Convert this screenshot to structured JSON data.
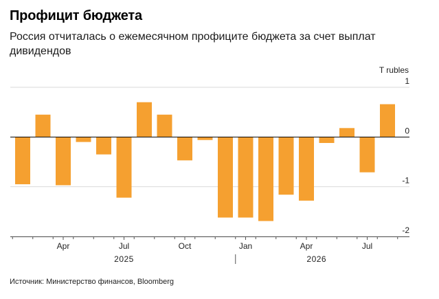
{
  "header": {
    "title": "Профицит бюджета",
    "subtitle": "Россия отчиталась о ежемесячном профиците бюджета за счет выплат дивидендов"
  },
  "footer": {
    "source": "Источник: Министерство финансов, Bloomberg"
  },
  "chart_data": {
    "type": "bar",
    "title": "Профицит бюджета",
    "subtitle": "Россия отчиталась о ежемесячном профиците бюджета за счет выплат дивидендов",
    "unit": "T rubles",
    "categories": [
      "2025-02",
      "2025-03",
      "2025-04",
      "2025-05",
      "2025-06",
      "2025-07",
      "2025-08",
      "2025-09",
      "2025-10",
      "2025-11",
      "2025-12",
      "2026-01",
      "2026-02",
      "2026-03",
      "2026-04",
      "2026-05",
      "2026-06",
      "2026-07",
      "2026-08"
    ],
    "values": [
      -0.95,
      0.45,
      -0.97,
      -0.1,
      -0.35,
      -1.22,
      0.7,
      0.45,
      -0.47,
      -0.06,
      -1.62,
      -1.62,
      -1.69,
      -1.16,
      -1.28,
      -0.12,
      0.18,
      -0.71,
      0.66
    ],
    "yticks": [
      1,
      0,
      -1,
      -2
    ],
    "ylim": [
      -2.0,
      1.0
    ],
    "xticks": [
      {
        "category": "2025-04",
        "label": "Apr"
      },
      {
        "category": "2025-07",
        "label": "Jul"
      },
      {
        "category": "2025-10",
        "label": "Oct"
      },
      {
        "category": "2026-01",
        "label": "Jan"
      },
      {
        "category": "2026-04",
        "label": "Apr"
      },
      {
        "category": "2026-07",
        "label": "Jul"
      }
    ],
    "years": [
      {
        "label": "2025",
        "from": "2025-02",
        "to": "2025-12"
      },
      {
        "label": "2026",
        "from": "2026-01",
        "to": "2026-08"
      }
    ],
    "grid": true,
    "legend": "none",
    "colors": {
      "bar": "#f5a030",
      "grid": "#d9d9d9",
      "zero": "#000000",
      "axis": "#555555"
    }
  }
}
